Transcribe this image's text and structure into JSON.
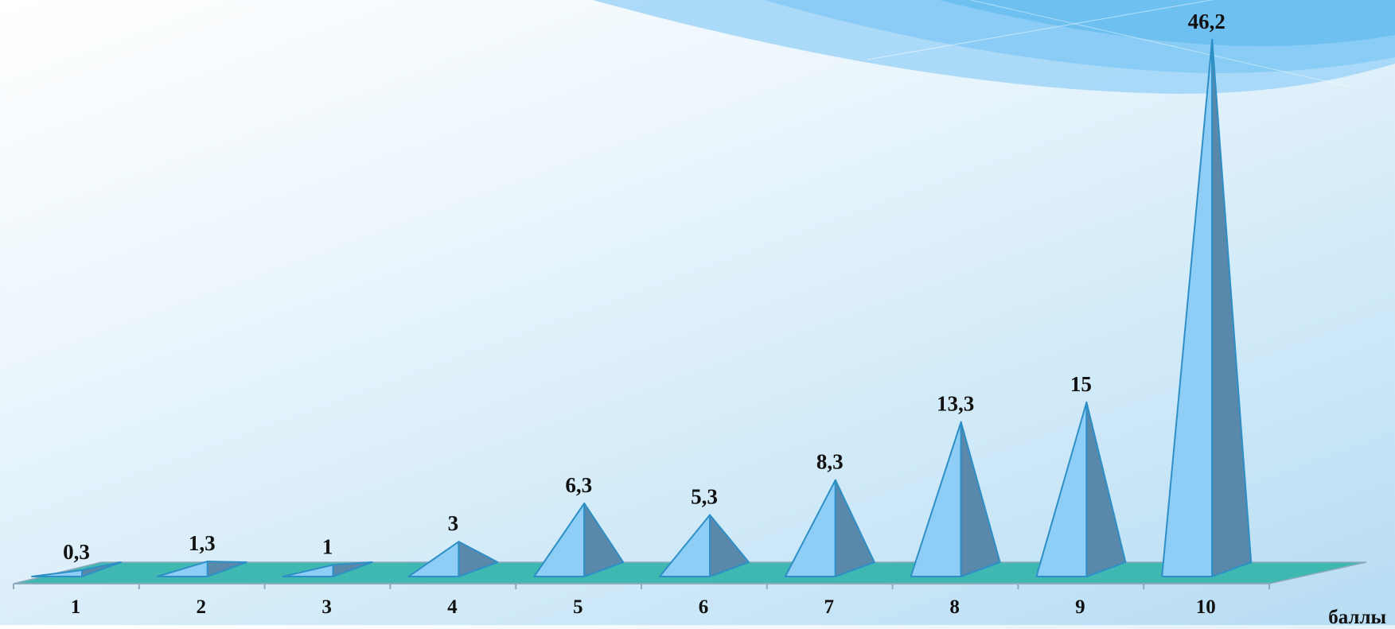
{
  "chart_data": {
    "type": "bar",
    "bar_shape": "3d-pyramid",
    "categories": [
      "1",
      "2",
      "3",
      "4",
      "5",
      "6",
      "7",
      "8",
      "9",
      "10"
    ],
    "values": [
      0.3,
      1.3,
      1,
      3,
      6.3,
      5.3,
      8.3,
      13.3,
      15,
      46.2
    ],
    "data_labels": [
      "0,3",
      "1,3",
      "1",
      "3",
      "6,3",
      "5,3",
      "8,3",
      "13,3",
      "15",
      "46,2"
    ],
    "xlabel": "баллы",
    "ylabel": "",
    "title": "",
    "grid": false,
    "legend": "none",
    "colors": {
      "front_face": "#8ecdf6",
      "side_face": "#5a88aa",
      "edge": "#2d8fc6",
      "floor": "#3fb8b2",
      "floor_edge": "#8fa9bd",
      "text": "#111111"
    }
  }
}
